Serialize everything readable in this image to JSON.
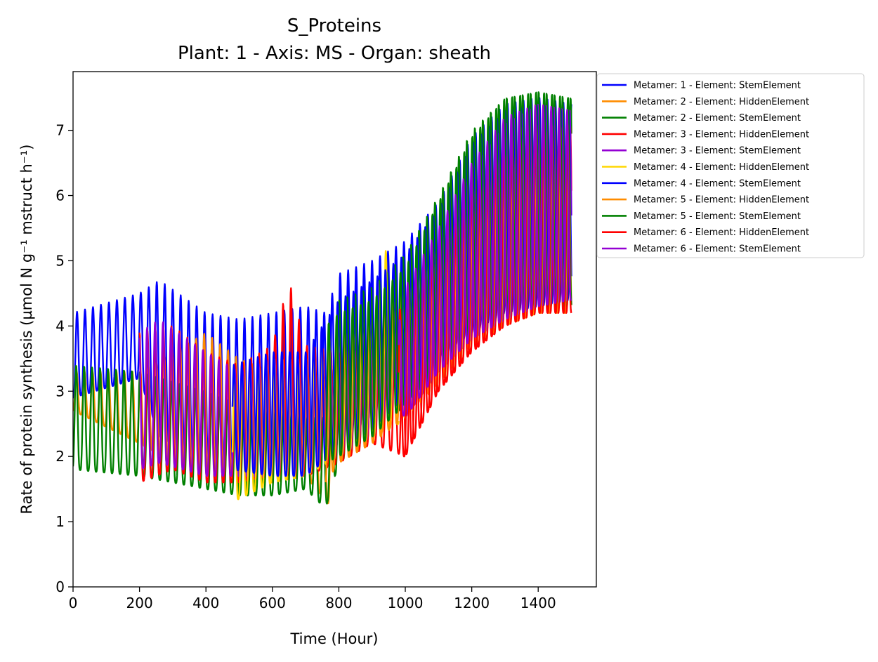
{
  "chart_data": {
    "type": "line",
    "title": "S_Proteins",
    "subtitle": "Plant: 1 - Axis: MS - Organ: sheath",
    "xlabel": "Time (Hour)",
    "ylabel": "Rate of protein synthesis (µmol N g⁻¹ mstruct h⁻¹)",
    "xlim": [
      0,
      1575
    ],
    "ylim": [
      0,
      7.9
    ],
    "xticks": [
      0,
      200,
      400,
      600,
      800,
      1000,
      1200,
      1400
    ],
    "yticks": [
      0,
      1,
      2,
      3,
      4,
      5,
      6,
      7
    ],
    "grid": false,
    "legend_position": "outside-right-top",
    "period_hours": 24,
    "series": [
      {
        "name": "Metamer: 1 - Element: StemElement",
        "color": "#0000ff",
        "x_range": [
          0,
          1500
        ],
        "envelope": {
          "x": [
            0,
            200,
            260,
            400,
            500,
            600,
            700,
            760,
            800,
            900,
            1000,
            1100,
            1200,
            1300,
            1400,
            1500
          ],
          "max": [
            4.2,
            4.5,
            4.7,
            4.2,
            4.1,
            4.2,
            4.3,
            4.2,
            4.8,
            5.0,
            5.3,
            5.9,
            6.9,
            7.4,
            7.5,
            7.4
          ],
          "min": [
            2.9,
            3.2,
            2.3,
            1.9,
            1.8,
            1.8,
            1.9,
            1.9,
            2.2,
            2.6,
            3.1,
            3.5,
            3.9,
            4.2,
            4.3,
            4.4
          ]
        }
      },
      {
        "name": "Metamer: 2 - Element: HiddenElement",
        "color": "#ff8c00",
        "x_range": [
          0,
          780
        ],
        "envelope": {
          "x": [
            0,
            200,
            300,
            400,
            500,
            600,
            700,
            780
          ],
          "max": [
            3.3,
            3.3,
            3.6,
            3.9,
            3.5,
            3.3,
            3.3,
            3.2
          ],
          "min": [
            2.7,
            2.2,
            1.9,
            1.7,
            1.6,
            1.6,
            1.7,
            1.2
          ]
        }
      },
      {
        "name": "Metamer: 2 - Element: StemElement",
        "color": "#008000",
        "x_range": [
          0,
          1500
        ],
        "envelope": {
          "x": [
            0,
            200,
            400,
            500,
            600,
            700,
            760,
            800,
            900,
            1000,
            1100,
            1200,
            1300,
            1400,
            1500
          ],
          "max": [
            3.4,
            3.3,
            3.0,
            2.8,
            2.7,
            2.6,
            2.6,
            4.4,
            4.6,
            5.1,
            6.0,
            7.0,
            7.5,
            7.6,
            7.5
          ],
          "min": [
            1.8,
            1.7,
            1.5,
            1.4,
            1.4,
            1.5,
            1.2,
            1.9,
            2.3,
            2.8,
            3.3,
            3.8,
            4.1,
            4.3,
            4.3
          ]
        }
      },
      {
        "name": "Metamer: 3 - Element: HiddenElement",
        "color": "#ff0000",
        "x_range": [
          200,
          1500
        ],
        "envelope": {
          "x": [
            200,
            300,
            400,
            500,
            600,
            650,
            700,
            800,
            900,
            1000,
            1100,
            1200,
            1300,
            1400,
            1500
          ],
          "max": [
            3.9,
            4.0,
            3.6,
            3.4,
            3.7,
            4.7,
            3.7,
            3.6,
            3.7,
            4.0,
            5.0,
            6.0,
            6.7,
            7.0,
            7.1
          ],
          "min": [
            1.6,
            1.8,
            1.6,
            1.6,
            1.7,
            1.7,
            1.7,
            1.9,
            2.2,
            2.0,
            3.0,
            3.6,
            4.0,
            4.2,
            4.2
          ]
        }
      },
      {
        "name": "Metamer: 3 - Element: StemElement",
        "color": "#9400d3",
        "x_range": [
          200,
          1500
        ],
        "envelope": {
          "x": [
            200,
            260,
            400,
            500,
            600,
            700,
            800,
            900,
            980,
            1000,
            1100,
            1200,
            1300,
            1400,
            1500
          ],
          "max": [
            3.9,
            4.1,
            3.6,
            3.3,
            3.5,
            3.4,
            3.6,
            3.7,
            3.8,
            4.2,
            5.3,
            6.4,
            7.1,
            7.4,
            7.3
          ],
          "min": [
            1.8,
            1.9,
            1.7,
            1.7,
            1.7,
            1.8,
            2.0,
            2.3,
            2.8,
            2.6,
            3.3,
            3.8,
            4.1,
            4.3,
            4.4
          ]
        }
      },
      {
        "name": "Metamer: 4 - Element: HiddenElement",
        "color": "#ffd700",
        "x_range": [
          480,
          980
        ],
        "envelope": {
          "x": [
            480,
            600,
            700,
            800,
            900,
            940,
            980
          ],
          "max": [
            3.2,
            3.5,
            3.5,
            3.8,
            4.3,
            5.2,
            4.0
          ],
          "min": [
            1.3,
            1.6,
            1.7,
            2.0,
            2.3,
            2.4,
            2.5
          ]
        }
      },
      {
        "name": "Metamer: 4 - Element: StemElement",
        "color": "#0000ff",
        "x_range": [
          480,
          1500
        ],
        "envelope": {
          "x": [
            480,
            600,
            700,
            800,
            900,
            1000,
            1100,
            1200,
            1300,
            1400,
            1500
          ],
          "max": [
            3.4,
            3.6,
            3.6,
            4.4,
            4.7,
            5.1,
            5.8,
            6.8,
            7.3,
            7.4,
            7.3
          ],
          "min": [
            1.8,
            1.7,
            1.7,
            2.1,
            2.4,
            2.9,
            3.4,
            3.8,
            4.1,
            4.3,
            4.4
          ]
        }
      },
      {
        "name": "Metamer: 5 - Element: HiddenElement",
        "color": "#ff8c00",
        "x_range": [
          760,
          1500
        ],
        "envelope": {
          "x": [
            760,
            800,
            900,
            1000,
            1100,
            1200,
            1300,
            1400,
            1500
          ],
          "max": [
            3.8,
            3.9,
            4.1,
            4.6,
            5.4,
            6.3,
            7.0,
            7.2,
            7.1
          ],
          "min": [
            1.6,
            1.9,
            2.2,
            2.6,
            3.1,
            3.7,
            4.0,
            4.2,
            4.2
          ]
        }
      },
      {
        "name": "Metamer: 5 - Element: StemElement",
        "color": "#008000",
        "x_range": [
          760,
          1500
        ],
        "envelope": {
          "x": [
            760,
            800,
            900,
            1000,
            1100,
            1200,
            1300,
            1400,
            1500
          ],
          "max": [
            4.0,
            4.2,
            4.4,
            4.9,
            5.9,
            6.9,
            7.5,
            7.6,
            7.5
          ],
          "min": [
            1.9,
            2.0,
            2.3,
            2.8,
            3.3,
            3.8,
            4.1,
            4.3,
            4.3
          ]
        }
      },
      {
        "name": "Metamer: 6 - Element: HiddenElement",
        "color": "#ff0000",
        "x_range": [
          980,
          1500
        ],
        "envelope": {
          "x": [
            980,
            1000,
            1100,
            1200,
            1300,
            1400,
            1500
          ],
          "max": [
            4.2,
            4.5,
            5.2,
            6.1,
            6.8,
            7.1,
            7.1
          ],
          "min": [
            2.0,
            2.0,
            3.0,
            3.6,
            4.0,
            4.2,
            4.2
          ]
        }
      },
      {
        "name": "Metamer: 6 - Element: StemElement",
        "color": "#9400d3",
        "x_range": [
          980,
          1500
        ],
        "envelope": {
          "x": [
            980,
            1000,
            1100,
            1200,
            1300,
            1400,
            1500
          ],
          "max": [
            4.0,
            4.6,
            5.5,
            6.5,
            7.2,
            7.4,
            7.3
          ],
          "min": [
            2.7,
            2.6,
            3.3,
            3.8,
            4.1,
            4.3,
            4.4
          ]
        }
      }
    ]
  }
}
